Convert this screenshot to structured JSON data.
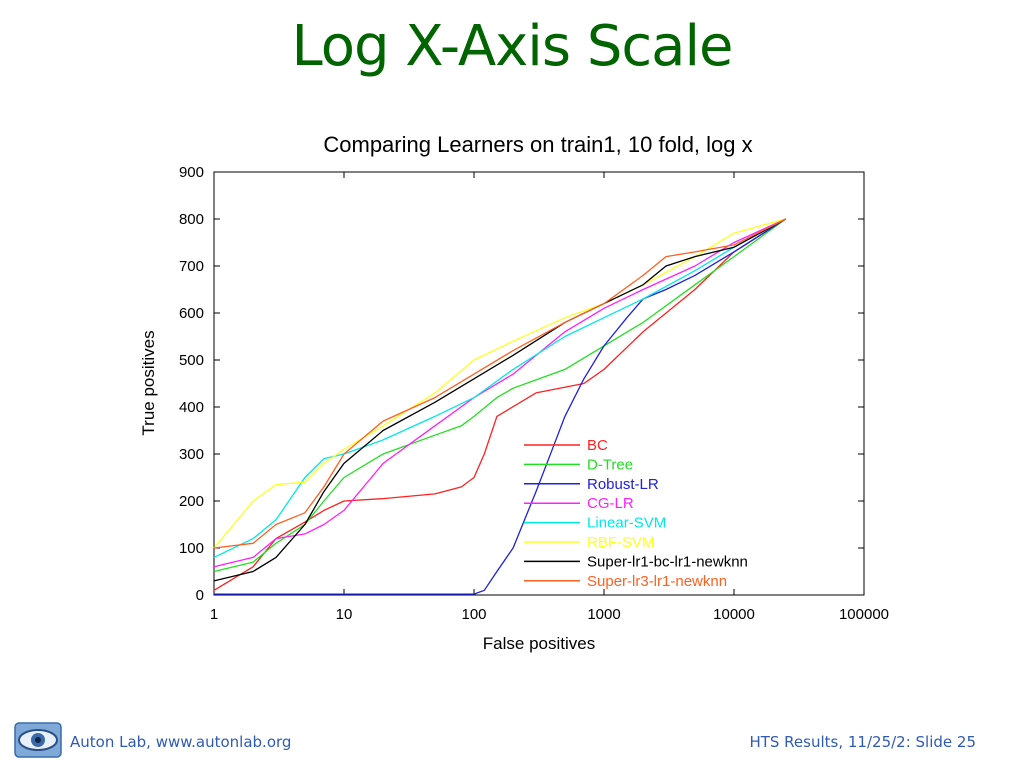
{
  "slide": {
    "title": "Log X-Axis Scale",
    "footer_left": "Auton Lab, www.autonlab.org",
    "footer_right": "HTS Results, 11/25/2: Slide 25",
    "logo_icon": "eye-logo-icon",
    "title_color": "#006400",
    "footer_color": "#2f5bb7"
  },
  "chart_data": {
    "type": "line",
    "title": "Comparing Learners on train1, 10 fold, log x",
    "xlabel": "False positives",
    "ylabel": "True positives",
    "xscale": "log",
    "xlim": [
      1,
      100000
    ],
    "ylim": [
      0,
      900
    ],
    "xticks": [
      1,
      10,
      100,
      1000,
      10000,
      100000
    ],
    "xtick_labels": [
      "1",
      "10",
      "100",
      "1000",
      "10000",
      "100000"
    ],
    "yticks": [
      0,
      100,
      200,
      300,
      400,
      500,
      600,
      700,
      800,
      900
    ],
    "ytick_labels": [
      "0",
      "100",
      "200",
      "300",
      "400",
      "500",
      "600",
      "700",
      "800",
      "900"
    ],
    "legend_position": "lower-right",
    "series": [
      {
        "name": "BC",
        "color": "#ff2020",
        "x": [
          1,
          2,
          3,
          5,
          7,
          10,
          20,
          50,
          80,
          100,
          120,
          150,
          300,
          700,
          1000,
          2000,
          5000,
          10000,
          25000
        ],
        "y": [
          10,
          60,
          120,
          155,
          180,
          200,
          205,
          215,
          230,
          250,
          300,
          380,
          430,
          450,
          480,
          560,
          650,
          730,
          800
        ]
      },
      {
        "name": "D-Tree",
        "color": "#20e020",
        "x": [
          1,
          2,
          3,
          5,
          7,
          10,
          20,
          50,
          80,
          100,
          150,
          200,
          500,
          1000,
          2000,
          5000,
          10000,
          25000
        ],
        "y": [
          50,
          70,
          110,
          150,
          200,
          250,
          300,
          340,
          360,
          380,
          420,
          440,
          480,
          530,
          580,
          660,
          720,
          800
        ]
      },
      {
        "name": "Robust-LR",
        "color": "#2020e0",
        "x": [
          1,
          10,
          100,
          120,
          150,
          200,
          300,
          400,
          500,
          700,
          1000,
          1500,
          2000,
          3000,
          5000,
          10000,
          25000
        ],
        "y": [
          2,
          2,
          2,
          10,
          50,
          100,
          220,
          310,
          380,
          460,
          530,
          590,
          630,
          650,
          680,
          730,
          800
        ]
      },
      {
        "name": "CG-LR",
        "color": "#ff20ff",
        "x": [
          1,
          2,
          3,
          5,
          7,
          10,
          20,
          50,
          100,
          200,
          500,
          1000,
          2000,
          5000,
          10000,
          25000
        ],
        "y": [
          60,
          80,
          120,
          130,
          150,
          180,
          280,
          360,
          420,
          470,
          560,
          610,
          650,
          700,
          750,
          800
        ]
      },
      {
        "name": "Linear-SVM",
        "color": "#00e8e8",
        "x": [
          1,
          2,
          3,
          5,
          7,
          10,
          20,
          50,
          100,
          200,
          500,
          1000,
          2000,
          5000,
          10000,
          25000
        ],
        "y": [
          80,
          120,
          160,
          250,
          290,
          300,
          330,
          380,
          420,
          480,
          550,
          590,
          630,
          690,
          740,
          800
        ]
      },
      {
        "name": "RBF-SVM",
        "color": "#ffff20",
        "x": [
          1,
          2,
          3,
          5,
          7,
          10,
          20,
          50,
          100,
          200,
          500,
          1000,
          2000,
          5000,
          10000,
          25000
        ],
        "y": [
          100,
          200,
          235,
          240,
          280,
          310,
          360,
          430,
          500,
          540,
          590,
          620,
          660,
          720,
          770,
          800
        ]
      },
      {
        "name": "Super-lr1-bc-lr1-newknn",
        "color": "#000000",
        "x": [
          1,
          2,
          3,
          5,
          7,
          10,
          20,
          50,
          100,
          200,
          500,
          1000,
          2000,
          3000,
          5000,
          10000,
          25000
        ],
        "y": [
          30,
          50,
          80,
          150,
          220,
          280,
          350,
          410,
          460,
          510,
          580,
          620,
          660,
          700,
          720,
          740,
          800
        ]
      },
      {
        "name": "Super-lr3-lr1-newknn",
        "color": "#ff6020",
        "x": [
          1,
          2,
          3,
          5,
          7,
          10,
          20,
          50,
          100,
          200,
          500,
          1000,
          2000,
          3000,
          5000,
          10000,
          25000
        ],
        "y": [
          100,
          110,
          150,
          175,
          230,
          300,
          370,
          420,
          470,
          520,
          580,
          620,
          680,
          720,
          730,
          745,
          800
        ]
      }
    ]
  }
}
